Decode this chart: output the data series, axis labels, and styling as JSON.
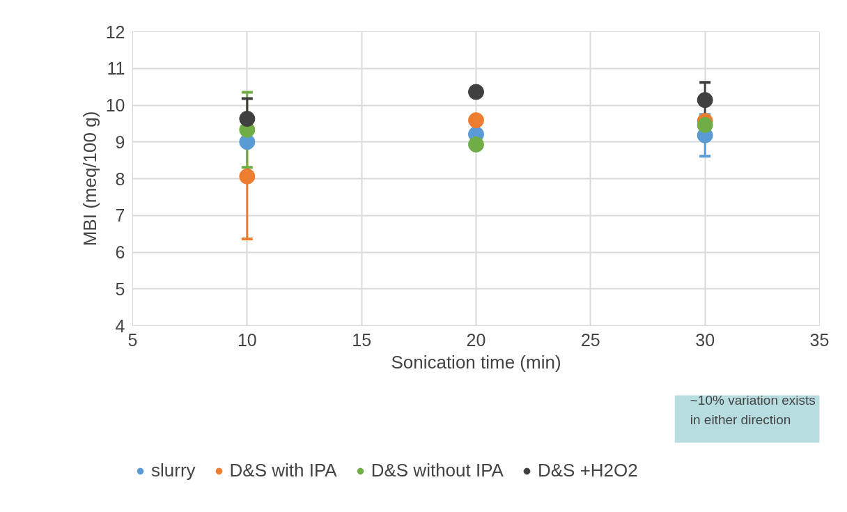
{
  "chart_data": {
    "type": "scatter",
    "xlabel": "Sonication time (min)",
    "ylabel": "MBI (meq/100 g)",
    "x": [
      10,
      20,
      30
    ],
    "xlim": [
      5,
      35
    ],
    "xticks": [
      5,
      10,
      15,
      20,
      25,
      30,
      35
    ],
    "ylim": [
      4,
      12
    ],
    "yticks": [
      4,
      5,
      6,
      7,
      8,
      9,
      10,
      11,
      12
    ],
    "grid": true,
    "legend": "bottom",
    "marker": "circle",
    "series": [
      {
        "name": "slurry",
        "color": "#5b9bd5",
        "values": [
          9.0,
          9.21,
          9.18
        ],
        "errors": [
          null,
          null,
          0.57
        ]
      },
      {
        "name": "D&S with IPA",
        "color": "#ed7d31",
        "values": [
          8.06,
          9.59,
          9.57
        ],
        "errors": [
          1.7,
          null,
          null
        ]
      },
      {
        "name": "D&S without IPA",
        "color": "#70ad47",
        "values": [
          9.33,
          8.93,
          9.46
        ],
        "errors": [
          1.02,
          null,
          null
        ]
      },
      {
        "name": "D&S +H2O2",
        "color": "#404040",
        "values": [
          9.63,
          10.36,
          10.14
        ],
        "errors": [
          0.55,
          null,
          0.48
        ]
      }
    ],
    "annotations": [
      "~10% variation exists\nin either direction"
    ]
  }
}
